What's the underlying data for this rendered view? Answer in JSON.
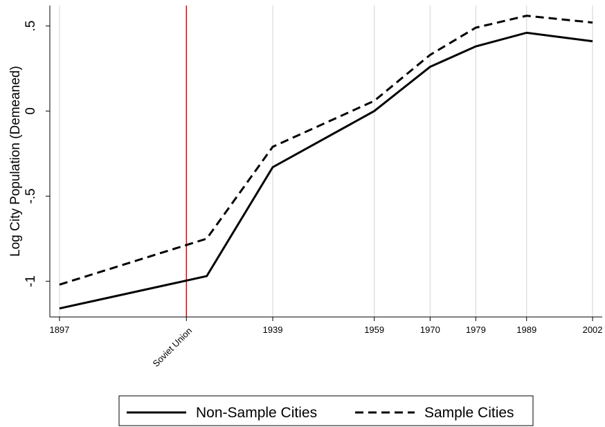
{
  "chart_data": {
    "type": "line",
    "y_label": "Log City Population (Demeaned)",
    "x": [
      1897,
      1926,
      1939,
      1959,
      1970,
      1979,
      1989,
      2002
    ],
    "series": [
      {
        "name": "Non-Sample Cities",
        "color": "#000000",
        "style": "solid",
        "values": [
          -1.16,
          -0.97,
          -0.33,
          0,
          0.26,
          0.38,
          0.46,
          0.41
        ]
      },
      {
        "name": "Sample Cities",
        "color": "#000000",
        "style": "dashed",
        "values": [
          -1.02,
          -0.75,
          -0.21,
          0.06,
          0.33,
          0.49,
          0.56,
          0.52
        ]
      }
    ],
    "xlim": [
      1895.1,
      2003.9
    ],
    "ylim": [
      -1.21,
      0.62
    ],
    "xticks": [
      1897,
      {
        "value": 1922,
        "label": "Soviet Union"
      },
      1939,
      1959,
      1970,
      1979,
      1989,
      2002
    ],
    "yticks": [
      {
        "value": 0.5,
        "label": ".5"
      },
      0,
      {
        "value": -0.5,
        "label": "-.5"
      },
      -1
    ],
    "grid": true,
    "grid_color": "#d9d9d9",
    "event_line_color": "#e8000b",
    "legend": "bottom"
  }
}
